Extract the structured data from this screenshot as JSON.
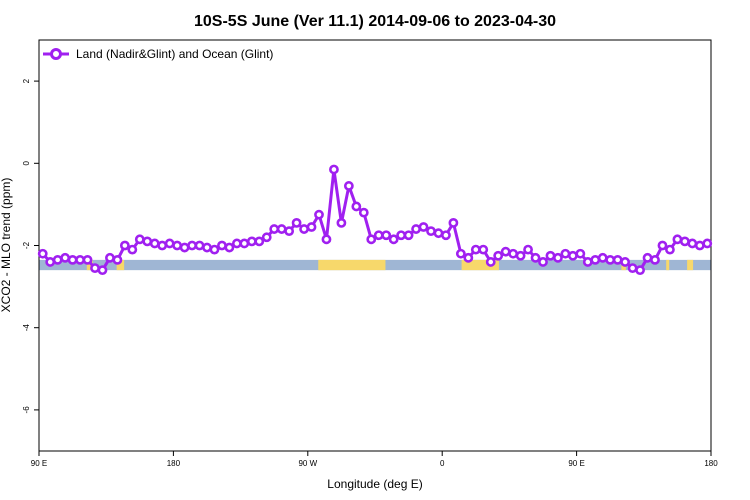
{
  "chart_data": {
    "type": "line",
    "title": "10S-5S June (Ver 11.1)   2014-09-06 to 2023-04-30",
    "xlabel": "Longitude (deg E)",
    "ylabel": "XCO2 - MLO trend (ppm)",
    "xlim": [
      90,
      540
    ],
    "ylim": [
      -7,
      3
    ],
    "x_ticks": [
      {
        "value": 90,
        "label": "90 E"
      },
      {
        "value": 180,
        "label": "180"
      },
      {
        "value": 270,
        "label": "90 W"
      },
      {
        "value": 360,
        "label": "0"
      },
      {
        "value": 450,
        "label": "90 E"
      },
      {
        "value": 540,
        "label": "180"
      }
    ],
    "y_ticks": [
      {
        "value": 2,
        "label": "2"
      },
      {
        "value": 0,
        "label": "0"
      },
      {
        "value": -2,
        "label": "-2"
      },
      {
        "value": -4,
        "label": "-4"
      },
      {
        "value": -6,
        "label": "-6"
      }
    ],
    "legend": {
      "position": "top-left"
    },
    "series": [
      {
        "name": "Land (Nadir&Glint) and Ocean (Glint)",
        "color": "#a020f0",
        "x": [
          92.5,
          97.5,
          102.5,
          107.5,
          112.5,
          117.5,
          122.5,
          127.5,
          132.5,
          137.5,
          142.5,
          147.5,
          152.5,
          157.5,
          162.5,
          167.5,
          172.5,
          177.5,
          182.5,
          187.5,
          192.5,
          197.5,
          202.5,
          207.5,
          212.5,
          217.5,
          222.5,
          227.5,
          232.5,
          237.5,
          242.5,
          247.5,
          252.5,
          257.5,
          262.5,
          267.5,
          272.5,
          277.5,
          282.5,
          287.5,
          292.5,
          297.5,
          302.5,
          307.5,
          312.5,
          317.5,
          322.5,
          327.5,
          332.5,
          337.5,
          342.5,
          347.5,
          352.5,
          357.5,
          362.5,
          367.5,
          372.5,
          377.5,
          382.5,
          387.5,
          392.5,
          397.5,
          402.5,
          407.5,
          412.5,
          417.5,
          422.5,
          427.5,
          432.5,
          437.5,
          442.5,
          447.5,
          452.5,
          457.5,
          462.5,
          467.5,
          472.5,
          477.5,
          482.5,
          487.5,
          492.5,
          497.5,
          502.5,
          507.5,
          512.5,
          517.5,
          522.5,
          527.5,
          532.5,
          537.5
        ],
        "y": [
          -2.2,
          -2.4,
          -2.35,
          -2.3,
          -2.35,
          -2.35,
          -2.35,
          -2.55,
          -2.6,
          -2.3,
          -2.35,
          -2.0,
          -2.1,
          -1.85,
          -1.9,
          -1.95,
          -2.0,
          -1.95,
          -2.0,
          -2.05,
          -2.0,
          -2.0,
          -2.05,
          -2.1,
          -2.0,
          -2.05,
          -1.95,
          -1.95,
          -1.9,
          -1.9,
          -1.8,
          -1.6,
          -1.6,
          -1.65,
          -1.45,
          -1.6,
          -1.55,
          -1.25,
          -1.85,
          -0.15,
          -1.45,
          -0.55,
          -1.05,
          -1.2,
          -1.85,
          -1.75,
          -1.75,
          -1.85,
          -1.75,
          -1.75,
          -1.6,
          -1.55,
          -1.65,
          -1.7,
          -1.75,
          -1.45,
          -2.2,
          -2.3,
          -2.1,
          -2.1,
          -2.4,
          -2.25,
          -2.15,
          -2.2,
          -2.25,
          -2.1,
          -2.3,
          -2.4,
          -2.25,
          -2.3,
          -2.2,
          -2.25,
          -2.2,
          -2.4,
          -2.35,
          -2.3,
          -2.35,
          -2.35,
          -2.4,
          -2.55,
          -2.6,
          -2.3,
          -2.35,
          -2.0,
          -2.1,
          -1.85,
          -1.9,
          -1.95,
          -2.0,
          -1.95
        ]
      }
    ],
    "surface_strip": {
      "y_top": -2.35,
      "y_bottom": -2.6,
      "ocean_color": "#9fb6d4",
      "land_color": "#f7d86b",
      "land_segments": [
        [
          122,
          126
        ],
        [
          142,
          147
        ],
        [
          277,
          322
        ],
        [
          373,
          398
        ],
        [
          480,
          483
        ],
        [
          510,
          512
        ],
        [
          524,
          528
        ]
      ]
    }
  }
}
